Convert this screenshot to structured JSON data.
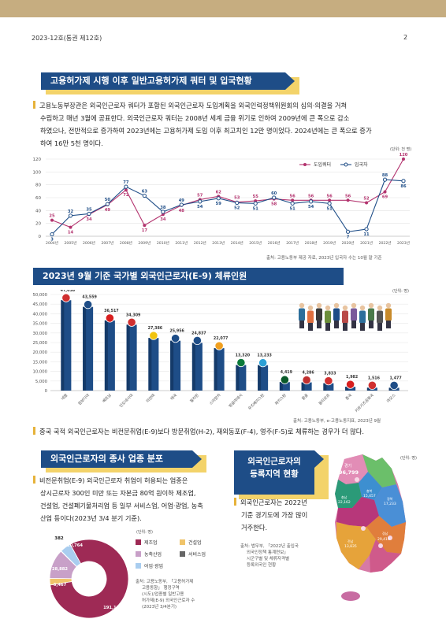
{
  "header": {
    "issue": "2023-12호(통권 제12호)",
    "page": "2"
  },
  "section1": {
    "title": "고용허가제 시행 이후 일반고용허가제 쿼터 및 입국현황",
    "paragraph_lines": [
      "고용노동부장관은 외국인근로자 쿼터가 포함된 외국인근로자 도입계획을 외국인력정책위원회의 심의·의결을 거쳐",
      "수립하고 매년 3월에 공표한다. 외국인근로자 쿼터는 2008년 세계 금융 위기로 인하여 2009년에 큰 폭으로 감소",
      "하였으나, 전반적으로 증가하여 2023년에는 고용허가제 도입 이후 최고치인 12만 명이었다. 2024년에는 큰 폭으로 증가",
      "하여 16만 5천 명이다."
    ],
    "unit": "(단위: 천 명)",
    "source": "출처: 고용노동부 제공 자료, 2023년 입국자 수는 10월 말 기준"
  },
  "chart1": {
    "type": "line",
    "categories": [
      "2004년",
      "2005년",
      "2006년",
      "2007년",
      "2008년",
      "2009년",
      "2010년",
      "2011년",
      "2012년",
      "2013년",
      "2014년",
      "2015년",
      "2016년",
      "2017년",
      "2018년",
      "2019년",
      "2020년",
      "2021년",
      "2022년",
      "2023년"
    ],
    "yticks": [
      "0",
      "20",
      "40",
      "60",
      "80",
      "100",
      "120"
    ],
    "ylim": [
      0,
      120
    ],
    "series": [
      {
        "name": "도입쿼터",
        "color": "#b3336e",
        "values": [
          25,
          14,
          34,
          49,
          72,
          17,
          34,
          48,
          57,
          62,
          53,
          55,
          58,
          56,
          56,
          56,
          56,
          52,
          69,
          120
        ]
      },
      {
        "name": "입국자",
        "color": "#1e4d87",
        "values": [
          3,
          32,
          35,
          50,
          77,
          63,
          38,
          49,
          54,
          59,
          52,
          51,
          60,
          51,
          54,
          51,
          7,
          11,
          88,
          86
        ]
      }
    ]
  },
  "section2": {
    "title": "2023년 9월 기준 국가별 외국인근로자(E-9) 체류인원",
    "unit": "(단위: 명)",
    "source": "출처: 고용노동부, e-고용노동지표, 2023년 9월",
    "note": "중국 국적 외국인근로자는 비전문취업(E-9)보다 방문취업(H-2), 재외동포(F-4), 영주(F-5)로 체류하는 경우가 더 많다."
  },
  "chart2": {
    "type": "bar",
    "categories": [
      "네팔",
      "캄보디아",
      "베트남",
      "인도네시아",
      "미얀마",
      "태국",
      "필리핀",
      "스리랑카",
      "방글라데시",
      "우즈베키스탄",
      "파키스탄",
      "몽골",
      "동티모르",
      "중국",
      "키르기즈공화국",
      "라오스"
    ],
    "values": [
      47038,
      43559,
      36517,
      34309,
      27386,
      25956,
      24837,
      22077,
      13320,
      13233,
      4419,
      4286,
      3833,
      1982,
      1516,
      1477
    ],
    "value_labels": [
      "47,038",
      "43,559",
      "36,517",
      "34,309",
      "27,386",
      "25,956",
      "24,837",
      "22,077",
      "13,320",
      "13,233",
      "4,419",
      "4,286",
      "3,833",
      "1,982",
      "1,516",
      "1,477"
    ],
    "yticks": [
      "0",
      "5,000",
      "10,000",
      "15,000",
      "20,000",
      "25,000",
      "30,000",
      "35,000",
      "40,000",
      "45,000",
      "50,000"
    ],
    "ylim": [
      0,
      50000
    ]
  },
  "section3": {
    "title": "외국인근로자의 종사 업종 분포",
    "paragraph_lines": [
      "비전문취업(E-9) 외국인근로자 취업이 허용되는 업종은",
      "상시근로자 300인 미만 또는 자본금 80억 원이하 제조업,",
      "건설업, 건설폐기물처리업 등 일부 서비스업, 어업·광업, 농축",
      "산업 등이다(2023년 3/4 분기 기준)."
    ],
    "unit": "(단위: 명)",
    "legend": [
      "제조업",
      "건설업",
      "농축산업",
      "서비스업",
      "어업·광업"
    ],
    "source_lines": [
      "출처: 고용노동부, 「고용허가제",
      "고용동향」 행정구역",
      "(시도)/업종별 일반고용",
      "허가제(E-9) 외국인근로자 수",
      "(2023년 3/4분기)"
    ]
  },
  "chart3": {
    "type": "pie",
    "labels": [
      "제조업",
      "건설업",
      "농축산업",
      "서비스업",
      "어업·광업"
    ],
    "values": [
      191151,
      6467,
      28882,
      382,
      10764
    ],
    "value_labels": [
      "191,151",
      "6,467",
      "28,882",
      "382",
      "10,764"
    ],
    "colors": [
      "#9e2a55",
      "#f0c46a",
      "#c8a0c8",
      "#666666",
      "#a9cdef"
    ]
  },
  "section4": {
    "title_lines": [
      "외국인근로자의",
      "등록지역 현황"
    ],
    "paragraph_lines": [
      "외국인근로자는 2022년",
      "기준 경기도에 가장 많이",
      "거주한다."
    ],
    "source_lines": [
      "출처: 법무부, 「2022년 출입국",
      "외국인정책 통계연보」",
      "시군구별 및 체류자격별",
      "등록외국인 현황"
    ],
    "unit": "(단위: 명)",
    "regions": [
      {
        "name": "경기",
        "value": "96,799"
      },
      {
        "name": "충북",
        "value": "15,457"
      },
      {
        "name": "경북",
        "value": "17,233"
      },
      {
        "name": "충남",
        "value": "22,162"
      },
      {
        "name": "경남",
        "value": "29,419"
      },
      {
        "name": "전남",
        "value": "13,835"
      },
      {
        "name": "전북",
        "value": ""
      }
    ]
  }
}
